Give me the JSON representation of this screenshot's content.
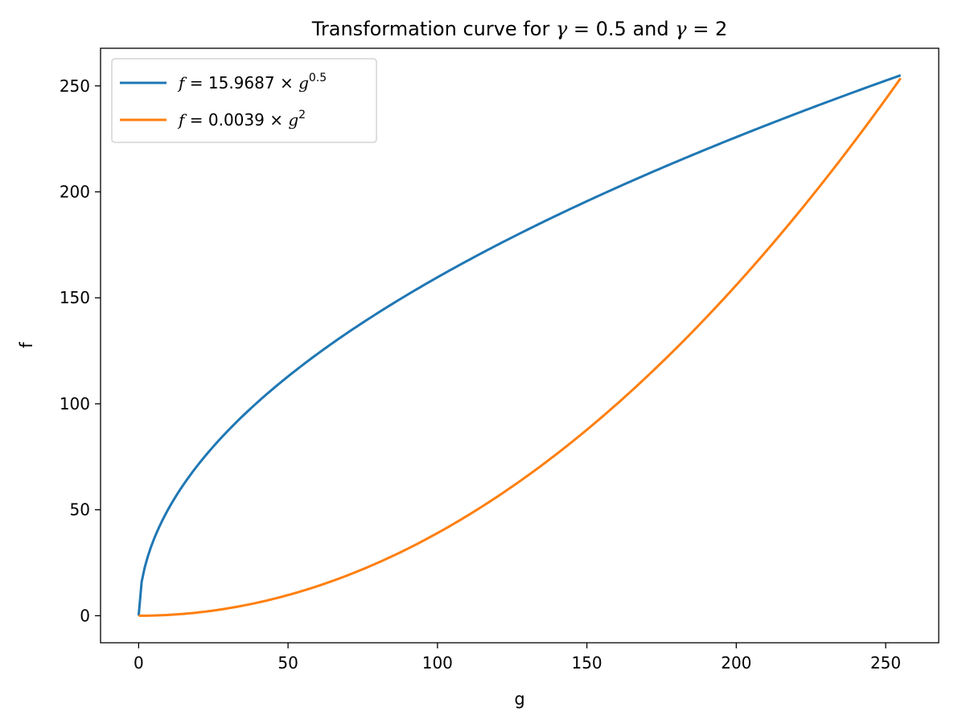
{
  "chart_data": {
    "type": "line",
    "title_parts": {
      "prefix": "Transformation curve for ",
      "gamma_symbol": "γ",
      "eq": " = ",
      "g1": "0.5",
      "mid": " and ",
      "g2": "2"
    },
    "xlabel": "g",
    "ylabel": "f",
    "xlim": [
      -12.75,
      267.75
    ],
    "ylim": [
      -12.75,
      267.75
    ],
    "xticks": [
      0,
      50,
      100,
      150,
      200,
      250
    ],
    "yticks": [
      0,
      50,
      100,
      150,
      200,
      250
    ],
    "grid": false,
    "legend_placement": "top-left",
    "series": [
      {
        "name_parts": {
          "f": "f",
          "eq": " = 15.9687 × ",
          "g": "g",
          "exp": "0.5"
        },
        "color": "#1f77b4",
        "coef": 15.9687,
        "gamma": 0.5,
        "x_range": [
          0,
          255
        ]
      },
      {
        "name_parts": {
          "f": "f",
          "eq": " = 0.0039 × ",
          "g": "g",
          "exp": "2"
        },
        "color": "#ff7f0e",
        "coef": 0.0039,
        "gamma": 2,
        "x_range": [
          0,
          255
        ]
      }
    ]
  }
}
